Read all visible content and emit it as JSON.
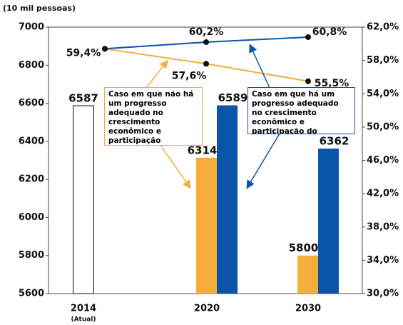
{
  "chart_data": {
    "type": "bar_line",
    "y_axis_label": "(10 mil pessoas)",
    "categories": [
      "2014",
      "2020",
      "2030"
    ],
    "category_note": "(Atual)",
    "ylim": [
      5600,
      7000
    ],
    "yticks": [
      5600,
      5800,
      6000,
      6200,
      6400,
      6600,
      6800,
      7000
    ],
    "y2lim": [
      30,
      62
    ],
    "y2ticks": [
      {
        "value": 30,
        "label": "30,0%"
      },
      {
        "value": 34,
        "label": "34,0%"
      },
      {
        "value": 38,
        "label": "38,0%"
      },
      {
        "value": 42,
        "label": "42,0%"
      },
      {
        "value": 46,
        "label": "46,0%"
      },
      {
        "value": 50,
        "label": "50,0%"
      },
      {
        "value": 54,
        "label": "54,0%"
      },
      {
        "value": 58,
        "label": "58,0%"
      },
      {
        "value": 62,
        "label": "62,0%"
      }
    ],
    "bars": [
      {
        "color": "#ffffff",
        "values": [
          6587,
          null,
          null
        ]
      },
      {
        "name": "Caso em que não há um progresso adequado no crescimento econômico e participação trabalhista",
        "color": "#f5ad3c",
        "values": [
          null,
          6314,
          5800
        ]
      },
      {
        "name": "Caso em que há um progresso adequado no crescimento econômico e participação do trabalho",
        "color": "#0a55a8",
        "values": [
          null,
          6589,
          6362
        ]
      }
    ],
    "lines": [
      {
        "color": "#f5ad3c",
        "axis": "y2",
        "values": [
          59.4,
          57.6,
          55.5
        ],
        "value_labels": [
          "59,4%",
          "57,6%",
          "55,5%"
        ]
      },
      {
        "color": "#0a55a8",
        "axis": "y2",
        "values": [
          59.4,
          60.2,
          60.8
        ],
        "value_labels": [
          null,
          "60,2%",
          "60,8%"
        ]
      }
    ]
  }
}
